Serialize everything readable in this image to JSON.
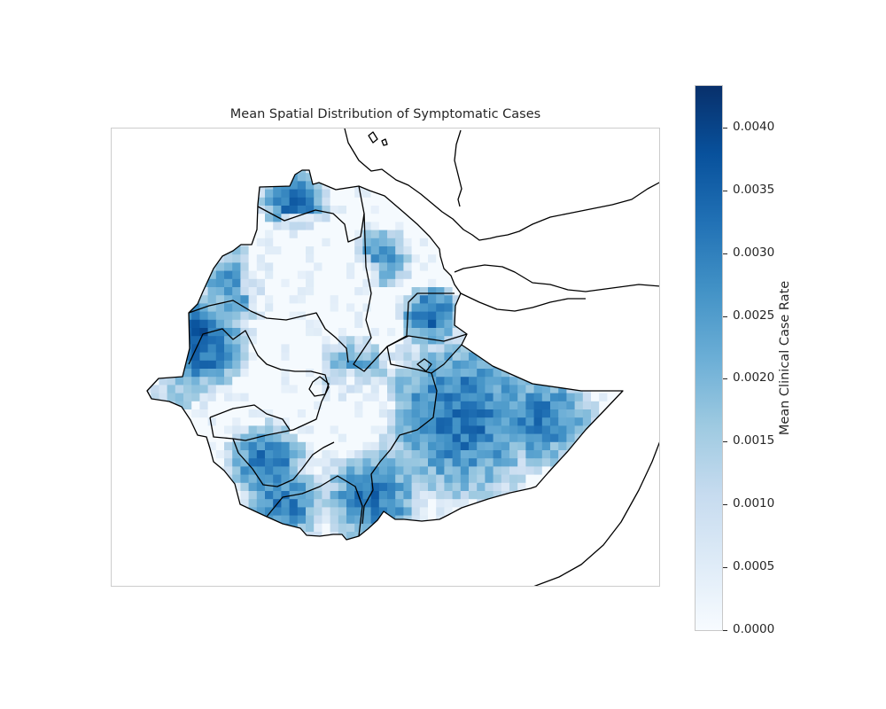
{
  "map": {
    "title": "Mean Spatial Distribution of Symptomatic Cases",
    "colormap": "Blues",
    "colors": {
      "cmap_stops": [
        "#f7fbff",
        "#deebf7",
        "#c6dbef",
        "#9ecae1",
        "#6baed6",
        "#4292c6",
        "#2171b5",
        "#08519c",
        "#08306b"
      ],
      "boundary": "#000000",
      "frame": "#cccccc",
      "text": "#262626"
    },
    "features": [
      "country-boundary",
      "region-boundaries",
      "coastline-red-sea",
      "coastline-gulf-of-aden",
      "coastline-indian-ocean"
    ],
    "high_intensity_regions": [
      "northwest",
      "east",
      "southeast",
      "southwest"
    ],
    "low_intensity_regions": [
      "central-highlands",
      "north-central"
    ]
  },
  "colorbar": {
    "label": "Mean Clinical Case Rate",
    "min": 0.0,
    "max": 0.00433,
    "ticks": [
      "0.0000",
      "0.0005",
      "0.0010",
      "0.0015",
      "0.0020",
      "0.0025",
      "0.0030",
      "0.0035",
      "0.0040"
    ],
    "tick_values": [
      0.0,
      0.0005,
      0.001,
      0.0015,
      0.002,
      0.0025,
      0.003,
      0.0035,
      0.004
    ]
  }
}
